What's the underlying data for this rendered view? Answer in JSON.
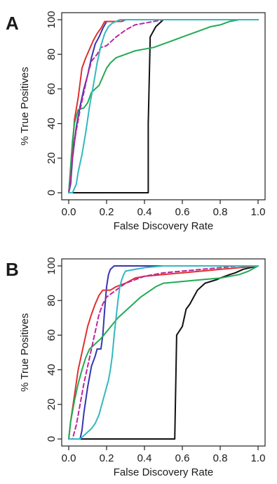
{
  "figure": {
    "panels": [
      "A",
      "B"
    ]
  },
  "chart_data": [
    {
      "panel_label": "A",
      "type": "line",
      "xlabel": "False Discovery Rate",
      "ylabel": "% True Positives",
      "xlim": [
        0,
        1
      ],
      "ylim": [
        0,
        100
      ],
      "xticks": [
        "0.0",
        "0.2",
        "0.4",
        "0.6",
        "0.8",
        "1.0"
      ],
      "yticks": [
        "0",
        "20",
        "40",
        "60",
        "80",
        "100"
      ],
      "grid": false,
      "legend": "none",
      "series": [
        {
          "color": "#111111",
          "dash": false,
          "points": [
            [
              0.0,
              0
            ],
            [
              0.4,
              0
            ],
            [
              0.41,
              0
            ],
            [
              0.42,
              0
            ],
            [
              0.42,
              40
            ],
            [
              0.43,
              88
            ],
            [
              0.43,
              90
            ],
            [
              0.44,
              92
            ],
            [
              0.45,
              94
            ],
            [
              0.46,
              96
            ],
            [
              0.48,
              98
            ],
            [
              0.5,
              100
            ],
            [
              1.0,
              100
            ]
          ]
        },
        {
          "color": "#3535b0",
          "dash": false,
          "points": [
            [
              0.0,
              0
            ],
            [
              0.01,
              5
            ],
            [
              0.02,
              20
            ],
            [
              0.04,
              38
            ],
            [
              0.06,
              50
            ],
            [
              0.08,
              60
            ],
            [
              0.1,
              68
            ],
            [
              0.12,
              78
            ],
            [
              0.14,
              86
            ],
            [
              0.16,
              90
            ],
            [
              0.18,
              95
            ],
            [
              0.2,
              99
            ],
            [
              0.28,
              99
            ],
            [
              0.3,
              100
            ],
            [
              1.0,
              100
            ]
          ]
        },
        {
          "color": "#e03030",
          "dash": false,
          "points": [
            [
              0.0,
              0
            ],
            [
              0.01,
              10
            ],
            [
              0.02,
              25
            ],
            [
              0.03,
              42
            ],
            [
              0.05,
              55
            ],
            [
              0.07,
              72
            ],
            [
              0.09,
              78
            ],
            [
              0.11,
              83
            ],
            [
              0.13,
              88
            ],
            [
              0.15,
              92
            ],
            [
              0.17,
              95
            ],
            [
              0.19,
              99
            ],
            [
              0.28,
              99
            ],
            [
              0.29,
              100
            ],
            [
              0.5,
              100
            ],
            [
              1.0,
              100
            ]
          ]
        },
        {
          "color": "#22aa55",
          "dash": false,
          "points": [
            [
              0.0,
              0
            ],
            [
              0.01,
              15
            ],
            [
              0.02,
              30
            ],
            [
              0.03,
              40
            ],
            [
              0.05,
              48
            ],
            [
              0.08,
              49
            ],
            [
              0.1,
              52
            ],
            [
              0.12,
              58
            ],
            [
              0.14,
              60
            ],
            [
              0.16,
              62
            ],
            [
              0.18,
              67
            ],
            [
              0.2,
              72
            ],
            [
              0.22,
              75
            ],
            [
              0.25,
              78
            ],
            [
              0.3,
              80
            ],
            [
              0.35,
              82
            ],
            [
              0.4,
              83
            ],
            [
              0.45,
              84
            ],
            [
              0.5,
              86
            ],
            [
              0.55,
              88
            ],
            [
              0.6,
              90
            ],
            [
              0.65,
              92
            ],
            [
              0.7,
              94
            ],
            [
              0.75,
              96
            ],
            [
              0.8,
              97
            ],
            [
              0.85,
              99
            ],
            [
              0.9,
              100
            ],
            [
              1.0,
              100
            ]
          ]
        },
        {
          "color": "#c0249e",
          "dash": true,
          "points": [
            [
              0.0,
              0
            ],
            [
              0.01,
              8
            ],
            [
              0.02,
              22
            ],
            [
              0.04,
              36
            ],
            [
              0.06,
              48
            ],
            [
              0.08,
              58
            ],
            [
              0.1,
              68
            ],
            [
              0.12,
              76
            ],
            [
              0.15,
              80
            ],
            [
              0.17,
              84
            ],
            [
              0.2,
              85
            ],
            [
              0.25,
              90
            ],
            [
              0.3,
              94
            ],
            [
              0.35,
              97
            ],
            [
              0.4,
              98
            ],
            [
              0.45,
              99
            ],
            [
              0.5,
              100
            ],
            [
              1.0,
              100
            ]
          ]
        },
        {
          "color": "#33b8c0",
          "dash": false,
          "points": [
            [
              0.0,
              0
            ],
            [
              0.02,
              0
            ],
            [
              0.04,
              5
            ],
            [
              0.05,
              12
            ],
            [
              0.07,
              22
            ],
            [
              0.09,
              35
            ],
            [
              0.11,
              50
            ],
            [
              0.13,
              62
            ],
            [
              0.15,
              75
            ],
            [
              0.17,
              85
            ],
            [
              0.19,
              92
            ],
            [
              0.21,
              96
            ],
            [
              0.23,
              98
            ],
            [
              0.25,
              99
            ],
            [
              0.27,
              100
            ],
            [
              1.0,
              100
            ]
          ]
        }
      ]
    },
    {
      "panel_label": "B",
      "type": "line",
      "xlabel": "False Discovery Rate",
      "ylabel": "% True Positives",
      "xlim": [
        0,
        1
      ],
      "ylim": [
        0,
        100
      ],
      "xticks": [
        "0.0",
        "0.2",
        "0.4",
        "0.6",
        "0.8",
        "1.0"
      ],
      "yticks": [
        "0",
        "20",
        "40",
        "60",
        "80",
        "100"
      ],
      "grid": false,
      "legend": "none",
      "series": [
        {
          "color": "#111111",
          "dash": false,
          "points": [
            [
              0.0,
              0
            ],
            [
              0.55,
              0
            ],
            [
              0.56,
              0
            ],
            [
              0.57,
              60
            ],
            [
              0.6,
              65
            ],
            [
              0.62,
              75
            ],
            [
              0.64,
              78
            ],
            [
              0.66,
              82
            ],
            [
              0.68,
              86
            ],
            [
              0.7,
              88
            ],
            [
              0.72,
              90
            ],
            [
              0.75,
              91
            ],
            [
              0.78,
              92
            ],
            [
              0.8,
              93
            ],
            [
              0.85,
              95
            ],
            [
              0.88,
              96
            ],
            [
              0.92,
              98
            ],
            [
              0.96,
              99
            ],
            [
              1.0,
              100
            ]
          ]
        },
        {
          "color": "#3535b0",
          "dash": false,
          "points": [
            [
              0.0,
              0
            ],
            [
              0.06,
              0
            ],
            [
              0.07,
              5
            ],
            [
              0.08,
              15
            ],
            [
              0.1,
              30
            ],
            [
              0.12,
              42
            ],
            [
              0.14,
              48
            ],
            [
              0.15,
              52
            ],
            [
              0.17,
              52
            ],
            [
              0.18,
              60
            ],
            [
              0.19,
              75
            ],
            [
              0.2,
              88
            ],
            [
              0.21,
              95
            ],
            [
              0.22,
              98
            ],
            [
              0.24,
              100
            ],
            [
              1.0,
              100
            ]
          ]
        },
        {
          "color": "#e03030",
          "dash": false,
          "points": [
            [
              0.0,
              0
            ],
            [
              0.01,
              10
            ],
            [
              0.03,
              25
            ],
            [
              0.05,
              40
            ],
            [
              0.08,
              55
            ],
            [
              0.1,
              65
            ],
            [
              0.12,
              72
            ],
            [
              0.14,
              78
            ],
            [
              0.16,
              83
            ],
            [
              0.18,
              86
            ],
            [
              0.22,
              86
            ],
            [
              0.25,
              88
            ],
            [
              0.3,
              90
            ],
            [
              0.35,
              93
            ],
            [
              0.4,
              94
            ],
            [
              0.5,
              95
            ],
            [
              0.6,
              96
            ],
            [
              0.7,
              97
            ],
            [
              0.8,
              98
            ],
            [
              0.9,
              99
            ],
            [
              1.0,
              100
            ]
          ]
        },
        {
          "color": "#22aa55",
          "dash": false,
          "points": [
            [
              0.0,
              0
            ],
            [
              0.01,
              10
            ],
            [
              0.03,
              22
            ],
            [
              0.05,
              32
            ],
            [
              0.07,
              40
            ],
            [
              0.09,
              47
            ],
            [
              0.11,
              52
            ],
            [
              0.14,
              55
            ],
            [
              0.17,
              58
            ],
            [
              0.2,
              62
            ],
            [
              0.23,
              66
            ],
            [
              0.26,
              70
            ],
            [
              0.3,
              74
            ],
            [
              0.34,
              78
            ],
            [
              0.38,
              82
            ],
            [
              0.42,
              85
            ],
            [
              0.46,
              88
            ],
            [
              0.5,
              90
            ],
            [
              0.6,
              91
            ],
            [
              0.7,
              92
            ],
            [
              0.8,
              93
            ],
            [
              0.9,
              95
            ],
            [
              0.95,
              97
            ],
            [
              1.0,
              100
            ]
          ]
        },
        {
          "color": "#c0249e",
          "dash": true,
          "points": [
            [
              0.0,
              0
            ],
            [
              0.02,
              0
            ],
            [
              0.04,
              8
            ],
            [
              0.06,
              20
            ],
            [
              0.08,
              32
            ],
            [
              0.1,
              42
            ],
            [
              0.12,
              52
            ],
            [
              0.14,
              62
            ],
            [
              0.16,
              72
            ],
            [
              0.18,
              78
            ],
            [
              0.2,
              82
            ],
            [
              0.25,
              86
            ],
            [
              0.3,
              90
            ],
            [
              0.35,
              92
            ],
            [
              0.4,
              94
            ],
            [
              0.45,
              95
            ],
            [
              0.5,
              96
            ],
            [
              0.6,
              97
            ],
            [
              0.7,
              98
            ],
            [
              0.8,
              99
            ],
            [
              0.9,
              100
            ],
            [
              1.0,
              100
            ]
          ]
        },
        {
          "color": "#33b8c0",
          "dash": false,
          "points": [
            [
              0.0,
              0
            ],
            [
              0.06,
              0
            ],
            [
              0.08,
              2
            ],
            [
              0.1,
              4
            ],
            [
              0.12,
              6
            ],
            [
              0.14,
              9
            ],
            [
              0.16,
              14
            ],
            [
              0.18,
              22
            ],
            [
              0.2,
              30
            ],
            [
              0.21,
              34
            ],
            [
              0.22,
              40
            ],
            [
              0.23,
              48
            ],
            [
              0.24,
              60
            ],
            [
              0.25,
              70
            ],
            [
              0.26,
              80
            ],
            [
              0.27,
              88
            ],
            [
              0.28,
              92
            ],
            [
              0.29,
              95
            ],
            [
              0.3,
              97
            ],
            [
              0.35,
              98
            ],
            [
              0.4,
              99
            ],
            [
              0.5,
              100
            ],
            [
              1.0,
              100
            ]
          ]
        }
      ]
    }
  ]
}
